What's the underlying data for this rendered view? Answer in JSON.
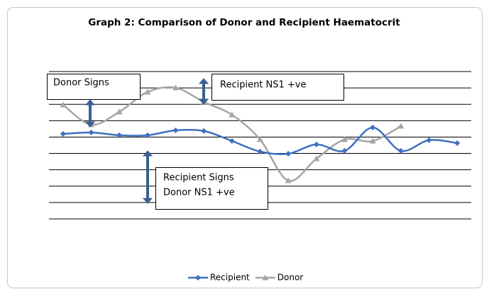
{
  "chart_data": {
    "type": "line",
    "title": "Graph 2: Comparison of Donor and Recipient Haematocrit",
    "annotations": [
      "Donor Signs",
      "Recipient NS1 +ve",
      "Recipient Signs",
      "Donor NS1 +ve"
    ],
    "categories": [
      null,
      null,
      null,
      null,
      null,
      null,
      null,
      null,
      null,
      null,
      null,
      null,
      null,
      null,
      null
    ],
    "series": [
      {
        "name": "Recipient",
        "color": "#3f6fbf",
        "marker": "diamond",
        "values": [
          5.19,
          5.28,
          5.11,
          5.11,
          5.41,
          5.37,
          4.76,
          4.11,
          3.98,
          4.55,
          4.16,
          5.58,
          4.16,
          4.81,
          4.63
        ]
      },
      {
        "name": "Donor",
        "color": "#a5a5a5",
        "marker": "triangle",
        "values": [
          6.97,
          5.76,
          6.54,
          7.75,
          8.01,
          7.14,
          6.36,
          4.85,
          2.34,
          3.68,
          4.85,
          4.76,
          5.67,
          null,
          null
        ]
      }
    ],
    "ylim": [
      0,
      9
    ],
    "yticks": [
      0,
      1,
      2,
      3,
      4,
      5,
      6,
      7,
      8,
      9
    ],
    "grid": true,
    "legend": "bottom"
  }
}
